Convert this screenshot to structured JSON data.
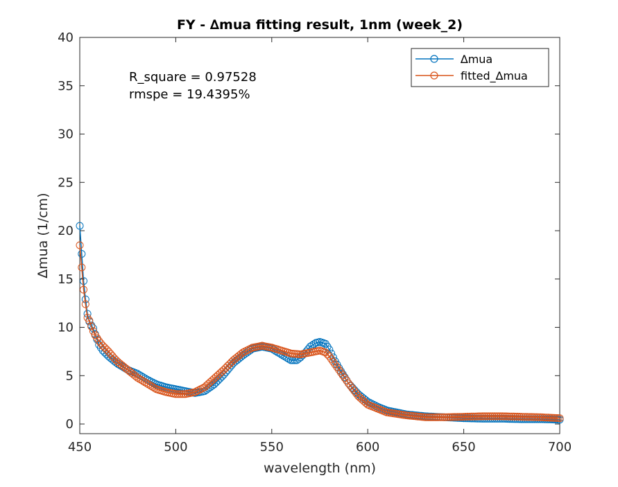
{
  "chart_data": {
    "type": "line",
    "title": "FY - ∆mua fitting result, 1nm (week_2)",
    "xlabel": "wavelength (nm)",
    "ylabel": "∆mua (1/cm)",
    "xlim": [
      450,
      700
    ],
    "ylim": [
      -1,
      40
    ],
    "xticks": [
      450,
      500,
      550,
      600,
      650,
      700
    ],
    "yticks": [
      0,
      5,
      10,
      15,
      20,
      25,
      30,
      35,
      40
    ],
    "grid": false,
    "legend_location": "top-right",
    "annotations": [
      "R_square = 0.97528",
      "rmspe = 19.4395%"
    ],
    "series": [
      {
        "name": "∆mua",
        "color": "#0072BD",
        "marker": "circle",
        "x": [
          450,
          451,
          452,
          453,
          454,
          455,
          456,
          457,
          458,
          460,
          462,
          465,
          468,
          470,
          475,
          480,
          485,
          490,
          495,
          500,
          505,
          510,
          515,
          520,
          525,
          530,
          535,
          540,
          545,
          550,
          555,
          560,
          563,
          565,
          568,
          570,
          573,
          575,
          578,
          580,
          583,
          585,
          590,
          595,
          600,
          605,
          610,
          620,
          630,
          640,
          650,
          660,
          670,
          680,
          690,
          700
        ],
        "y": [
          20.5,
          17.6,
          14.8,
          12.9,
          11.4,
          10.6,
          10.2,
          9.9,
          9.3,
          8.2,
          7.6,
          7.0,
          6.5,
          6.2,
          5.6,
          5.2,
          4.6,
          4.1,
          3.8,
          3.6,
          3.4,
          3.2,
          3.4,
          4.1,
          5.1,
          6.3,
          7.1,
          7.8,
          8.0,
          7.8,
          7.2,
          6.6,
          6.6,
          6.9,
          7.5,
          8.0,
          8.4,
          8.5,
          8.3,
          7.7,
          6.5,
          5.8,
          4.2,
          3.1,
          2.3,
          1.8,
          1.4,
          1.0,
          0.8,
          0.7,
          0.6,
          0.55,
          0.55,
          0.5,
          0.5,
          0.45
        ]
      },
      {
        "name": "fitted_∆mua",
        "color": "#D95319",
        "marker": "circle",
        "x": [
          450,
          451,
          452,
          453,
          454,
          455,
          456,
          457,
          458,
          460,
          462,
          465,
          468,
          470,
          475,
          480,
          485,
          490,
          495,
          500,
          505,
          510,
          515,
          520,
          525,
          530,
          535,
          540,
          545,
          550,
          555,
          560,
          565,
          570,
          575,
          578,
          580,
          585,
          590,
          595,
          600,
          605,
          610,
          620,
          630,
          640,
          650,
          660,
          670,
          680,
          690,
          700
        ],
        "y": [
          18.5,
          16.2,
          13.9,
          12.4,
          11.0,
          10.7,
          10.1,
          9.6,
          9.2,
          8.6,
          8.1,
          7.5,
          6.8,
          6.4,
          5.6,
          4.8,
          4.2,
          3.6,
          3.3,
          3.1,
          3.1,
          3.3,
          3.8,
          4.7,
          5.6,
          6.6,
          7.4,
          7.9,
          8.1,
          7.9,
          7.6,
          7.3,
          7.2,
          7.4,
          7.6,
          7.4,
          7.0,
          5.6,
          4.2,
          2.9,
          2.0,
          1.6,
          1.2,
          0.9,
          0.7,
          0.7,
          0.75,
          0.8,
          0.8,
          0.75,
          0.7,
          0.6
        ]
      }
    ]
  }
}
